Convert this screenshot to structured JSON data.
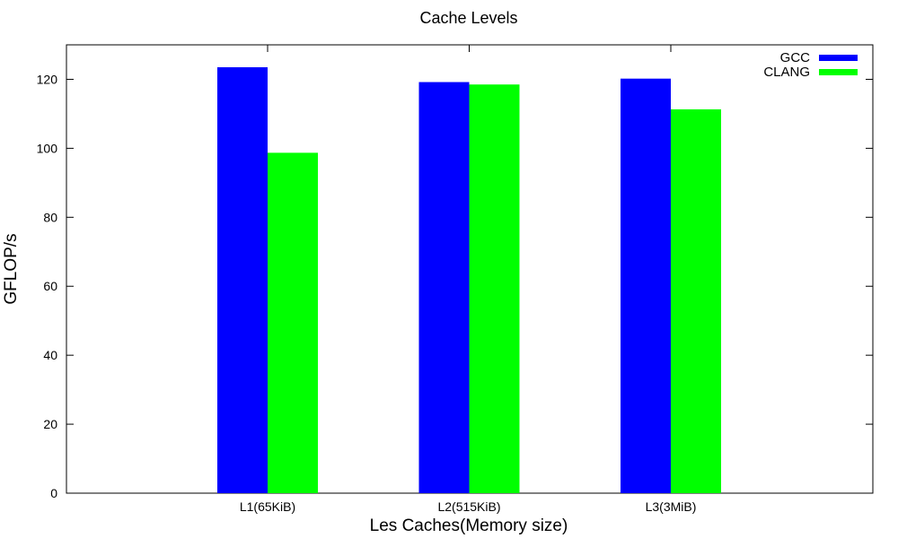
{
  "chart_data": {
    "type": "bar",
    "title": "Cache Levels",
    "xlabel": "Les Caches(Memory size)",
    "ylabel": "GFLOP/s",
    "categories": [
      "L1(65KiB)",
      "L2(515KiB)",
      "L3(3MiB)"
    ],
    "series": [
      {
        "name": "GCC",
        "color": "#0000ff",
        "values": [
          123.5,
          119.2,
          120.2
        ]
      },
      {
        "name": "CLANG",
        "color": "#00ff00",
        "values": [
          98.7,
          118.5,
          111.3
        ]
      }
    ],
    "ylim": [
      0,
      130
    ],
    "yticks": [
      0,
      20,
      40,
      60,
      80,
      100,
      120
    ],
    "grid": false,
    "legend_position": "top-right"
  }
}
